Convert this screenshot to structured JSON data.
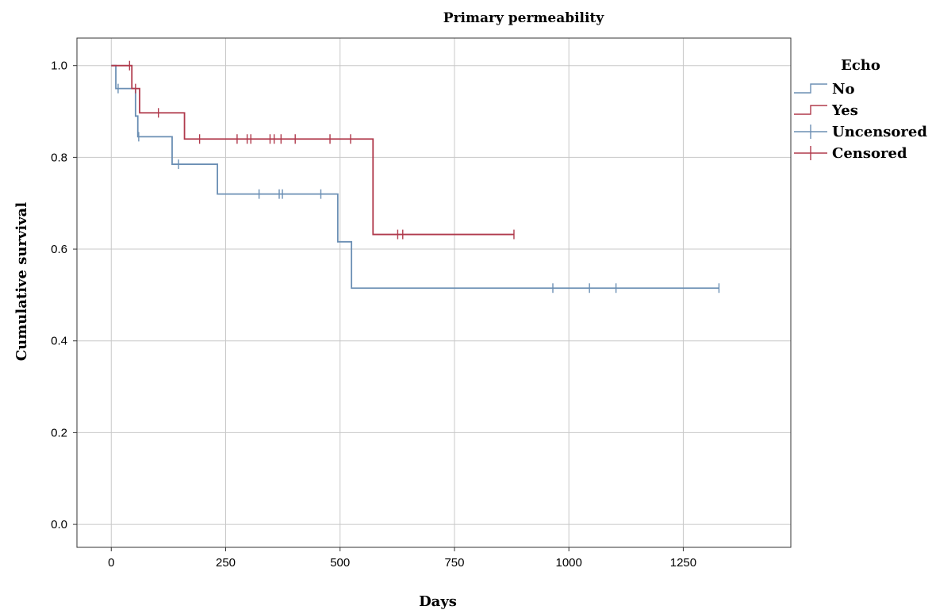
{
  "chart_data": {
    "type": "line",
    "subtype": "kaplan-meier",
    "title": "Primary permeability",
    "xlabel": "Days",
    "ylabel": "Cumulative survival",
    "xlim": [
      -75,
      1485
    ],
    "ylim": [
      -0.05,
      1.06
    ],
    "xticks": [
      0,
      250,
      500,
      750,
      1000,
      1250
    ],
    "yticks": [
      0.0,
      0.2,
      0.4,
      0.6,
      0.8,
      1.0
    ],
    "xtick_labels": [
      "0",
      "250",
      "500",
      "750",
      "1000",
      "1250"
    ],
    "ytick_labels": [
      "0.0",
      "0.2",
      "0.4",
      "0.6",
      "0.8",
      "1.0"
    ],
    "grid": true,
    "legend": {
      "title": "Echo",
      "position": "right",
      "entries": [
        {
          "label": "No",
          "kind": "step",
          "color": "#6b8fb4"
        },
        {
          "label": "Yes",
          "kind": "step",
          "color": "#b03a4c"
        },
        {
          "label": "Uncensored",
          "kind": "cross",
          "color": "#6b8fb4"
        },
        {
          "label": "Censored",
          "kind": "cross",
          "color": "#b03a4c"
        }
      ]
    },
    "series": [
      {
        "name": "No",
        "color": "#6b8fb4",
        "steps": [
          [
            0,
            1.0
          ],
          [
            10,
            0.95
          ],
          [
            53,
            0.89
          ],
          [
            58,
            0.845
          ],
          [
            133,
            0.785
          ],
          [
            232,
            0.72
          ],
          [
            495,
            0.616
          ],
          [
            525,
            0.515
          ],
          [
            1328,
            0.515
          ]
        ],
        "censored": [
          [
            15,
            0.95
          ],
          [
            60,
            0.845
          ],
          [
            147,
            0.785
          ],
          [
            323,
            0.72
          ],
          [
            367,
            0.72
          ],
          [
            374,
            0.72
          ],
          [
            458,
            0.72
          ],
          [
            965,
            0.515
          ],
          [
            1045,
            0.515
          ],
          [
            1103,
            0.515
          ],
          [
            1328,
            0.515
          ]
        ]
      },
      {
        "name": "Yes",
        "color": "#b03a4c",
        "steps": [
          [
            0,
            1.0
          ],
          [
            45,
            0.95
          ],
          [
            62,
            0.897
          ],
          [
            160,
            0.84
          ],
          [
            572,
            0.632
          ],
          [
            880,
            0.632
          ]
        ],
        "censored": [
          [
            40,
            1.0
          ],
          [
            53,
            0.95
          ],
          [
            103,
            0.897
          ],
          [
            193,
            0.84
          ],
          [
            275,
            0.84
          ],
          [
            297,
            0.84
          ],
          [
            305,
            0.84
          ],
          [
            347,
            0.84
          ],
          [
            356,
            0.84
          ],
          [
            371,
            0.84
          ],
          [
            402,
            0.84
          ],
          [
            478,
            0.84
          ],
          [
            523,
            0.84
          ],
          [
            626,
            0.632
          ],
          [
            637,
            0.632
          ],
          [
            880,
            0.632
          ]
        ]
      }
    ]
  }
}
